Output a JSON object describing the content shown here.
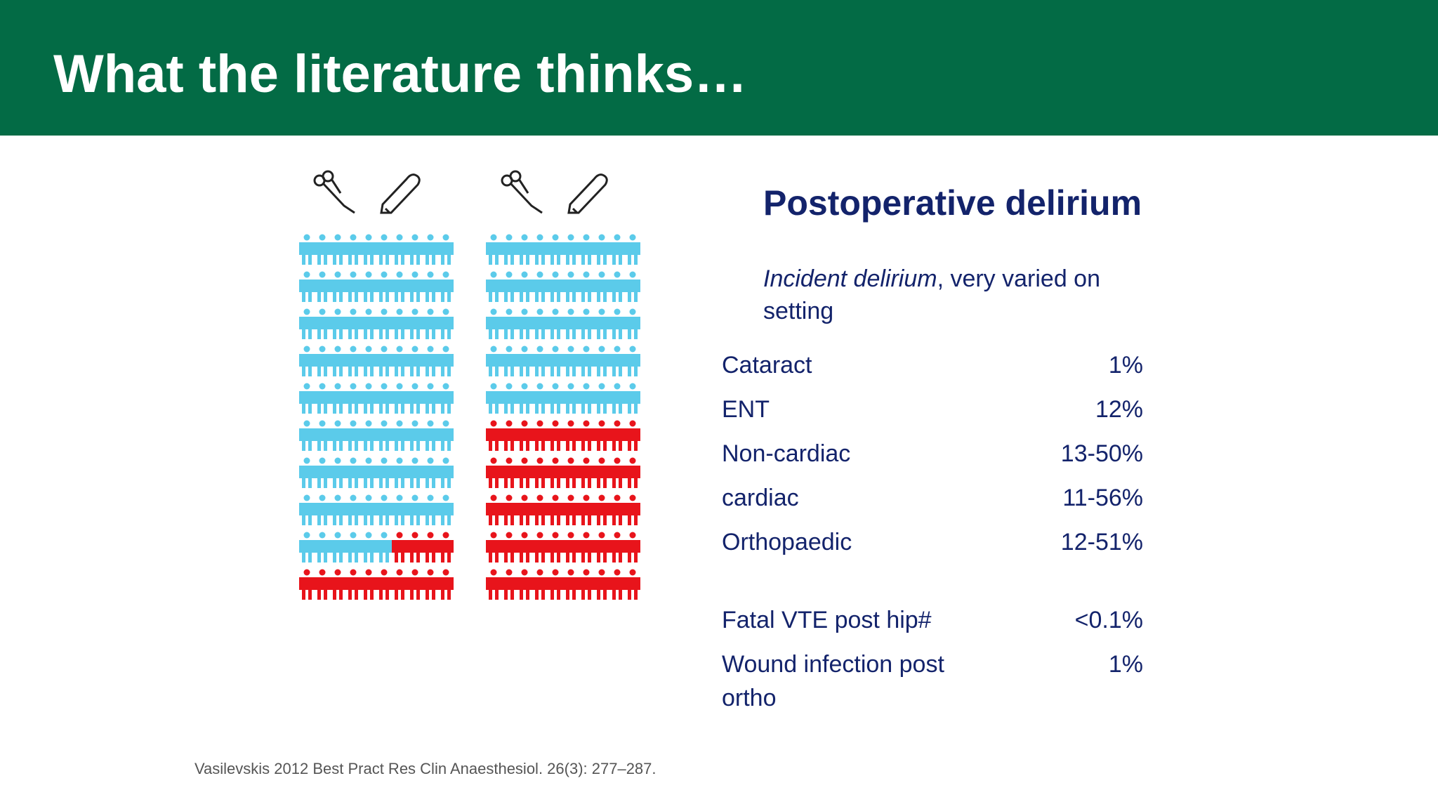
{
  "header": {
    "title": "What the literature thinks…"
  },
  "content": {
    "heading": "Postoperative delirium",
    "note": {
      "emphasis": "Incident delirium",
      "text": ", very varied on setting"
    },
    "groups": [
      [
        {
          "label": "Cataract",
          "value": "1%"
        },
        {
          "label": "ENT",
          "value": "12%"
        },
        {
          "label": "Non-cardiac",
          "value": "13-50%"
        },
        {
          "label": "cardiac",
          "value": "11-56%"
        },
        {
          "label": "Orthopaedic",
          "value": "12-51%"
        }
      ],
      [
        {
          "label": "Fatal VTE post hip#",
          "value": "<0.1%"
        },
        {
          "label": "Wound infection post ortho",
          "value": "1%"
        }
      ]
    ],
    "source": "Vasilevskis 2012 Best Pract Res Clin Anaesthesiol. 26(3): 277–287."
  }
}
